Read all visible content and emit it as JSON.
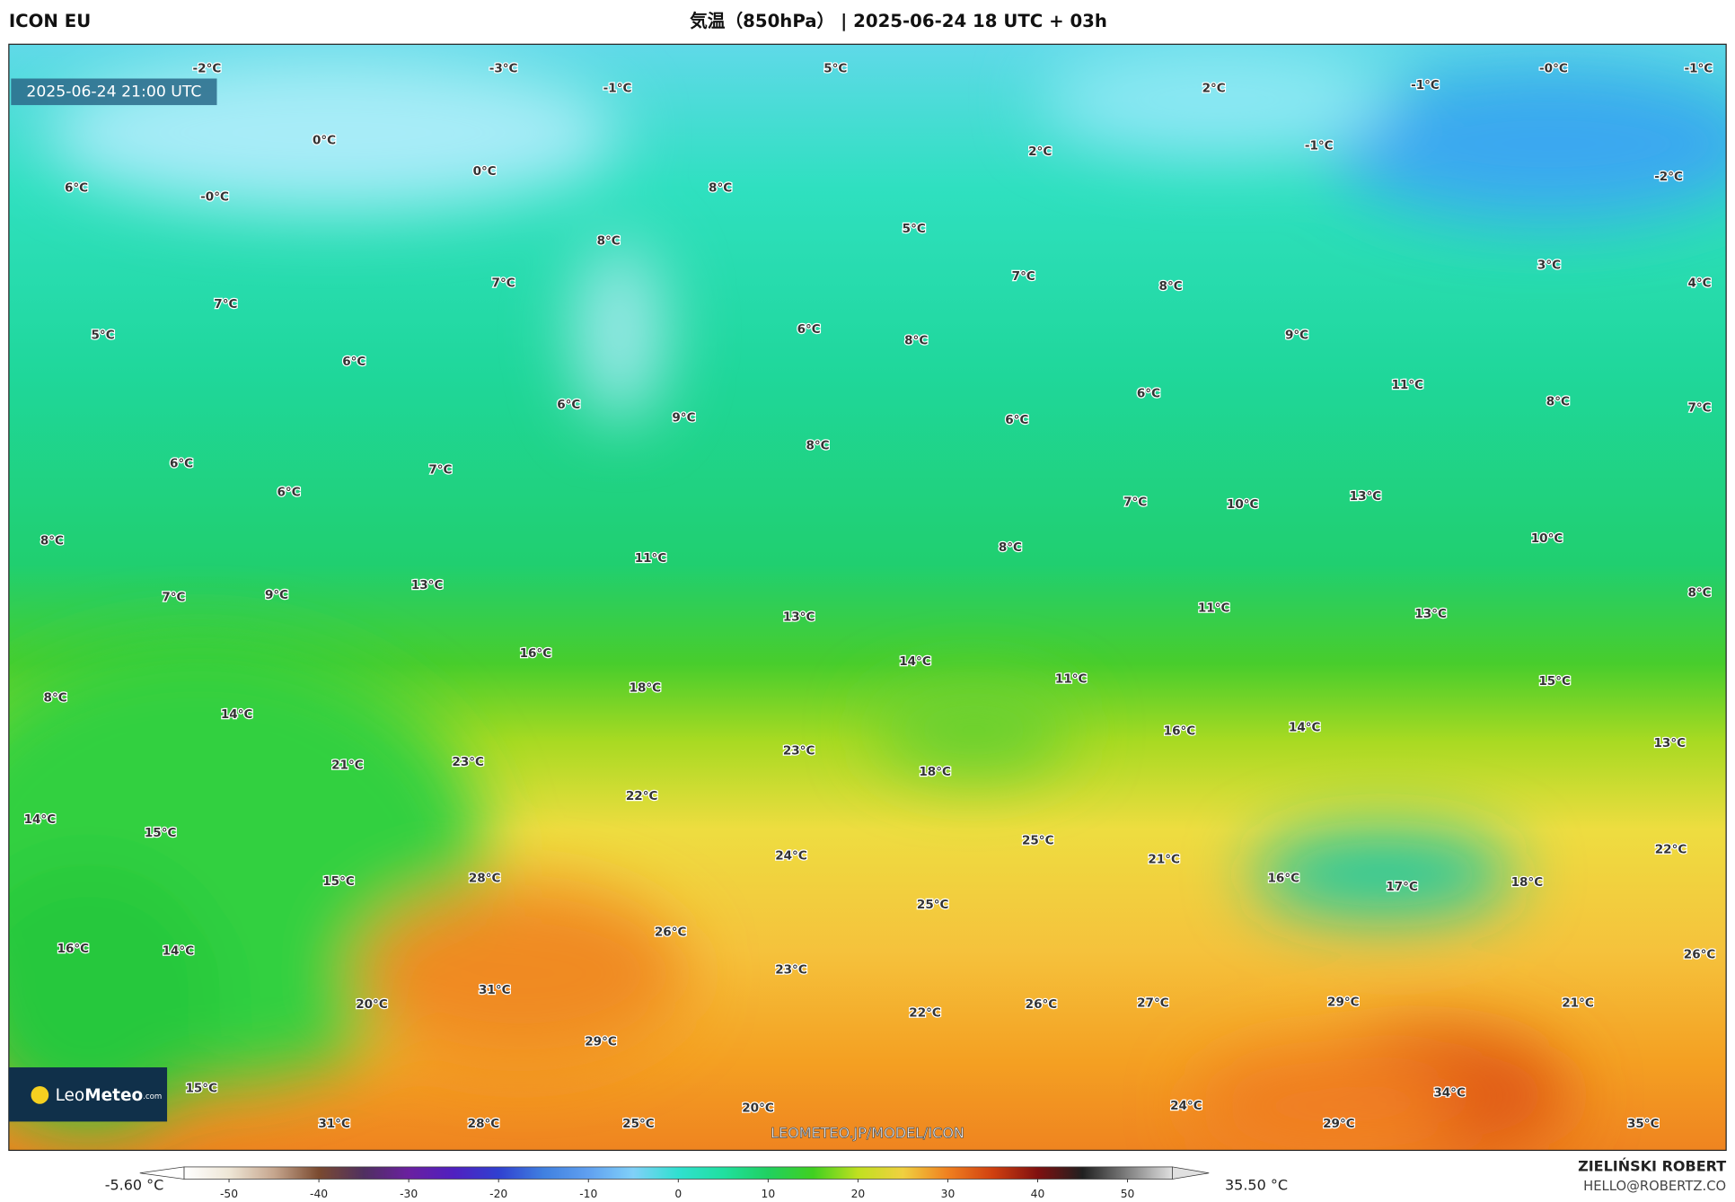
{
  "header": {
    "model": "ICON EU",
    "title": "気温（850hPa） | 2025-06-24 18 UTC + 03h"
  },
  "map": {
    "valid_time": "2025-06-24 21:00 UTC",
    "labels": [
      "-2°C",
      "-3°C",
      "-1°C",
      "5°C",
      "2°C",
      "-1°C",
      "-0°C",
      "-1°C",
      "0°C",
      "0°C",
      "2°C",
      "-1°C",
      "-2°C",
      "6°C",
      "-0°C",
      "8°C",
      "5°C",
      "8°C",
      "7°C",
      "7°C",
      "8°C",
      "3°C",
      "4°C",
      "7°C",
      "5°C",
      "6°C",
      "8°C",
      "9°C",
      "6°C",
      "11°C",
      "6°C",
      "8°C",
      "6°C",
      "9°C",
      "6°C",
      "7°C",
      "8°C",
      "6°C",
      "7°C",
      "6°C",
      "13°C",
      "7°C",
      "10°C",
      "8°C",
      "8°C",
      "10°C",
      "11°C",
      "13°C",
      "7°C",
      "9°C",
      "8°C",
      "11°C",
      "13°C",
      "13°C",
      "16°C",
      "14°C",
      "11°C",
      "15°C",
      "18°C",
      "8°C",
      "14°C",
      "16°C",
      "14°C",
      "13°C",
      "21°C",
      "23°C",
      "23°C",
      "18°C",
      "14°C",
      "15°C",
      "22°C",
      "25°C",
      "24°C",
      "21°C",
      "22°C",
      "15°C",
      "28°C",
      "16°C",
      "17°C",
      "18°C",
      "25°C",
      "26°C",
      "16°C",
      "14°C",
      "26°C",
      "23°C",
      "31°C",
      "20°C",
      "26°C",
      "27°C",
      "29°C",
      "21°C",
      "22°C",
      "29°C",
      "15°C",
      "34°C",
      "20°C",
      "24°C",
      "31°C",
      "28°C",
      "25°C",
      "29°C",
      "35°C"
    ],
    "watermark": "LEOMETEO.JP/MODEL/ICON",
    "logo": {
      "first": "Leo",
      "second": "Meteo",
      "suffix": ".com"
    }
  },
  "colorbar": {
    "min_label": "-5.60 °C",
    "max_label": "35.50 °C",
    "range": [
      -55,
      55
    ],
    "ticks": [
      -50,
      -40,
      -30,
      -20,
      -10,
      0,
      10,
      20,
      30,
      40,
      50
    ]
  },
  "credit": {
    "author": "ZIELIŃSKI ROBERT",
    "email": "HELLO@ROBERTZ.CO"
  }
}
